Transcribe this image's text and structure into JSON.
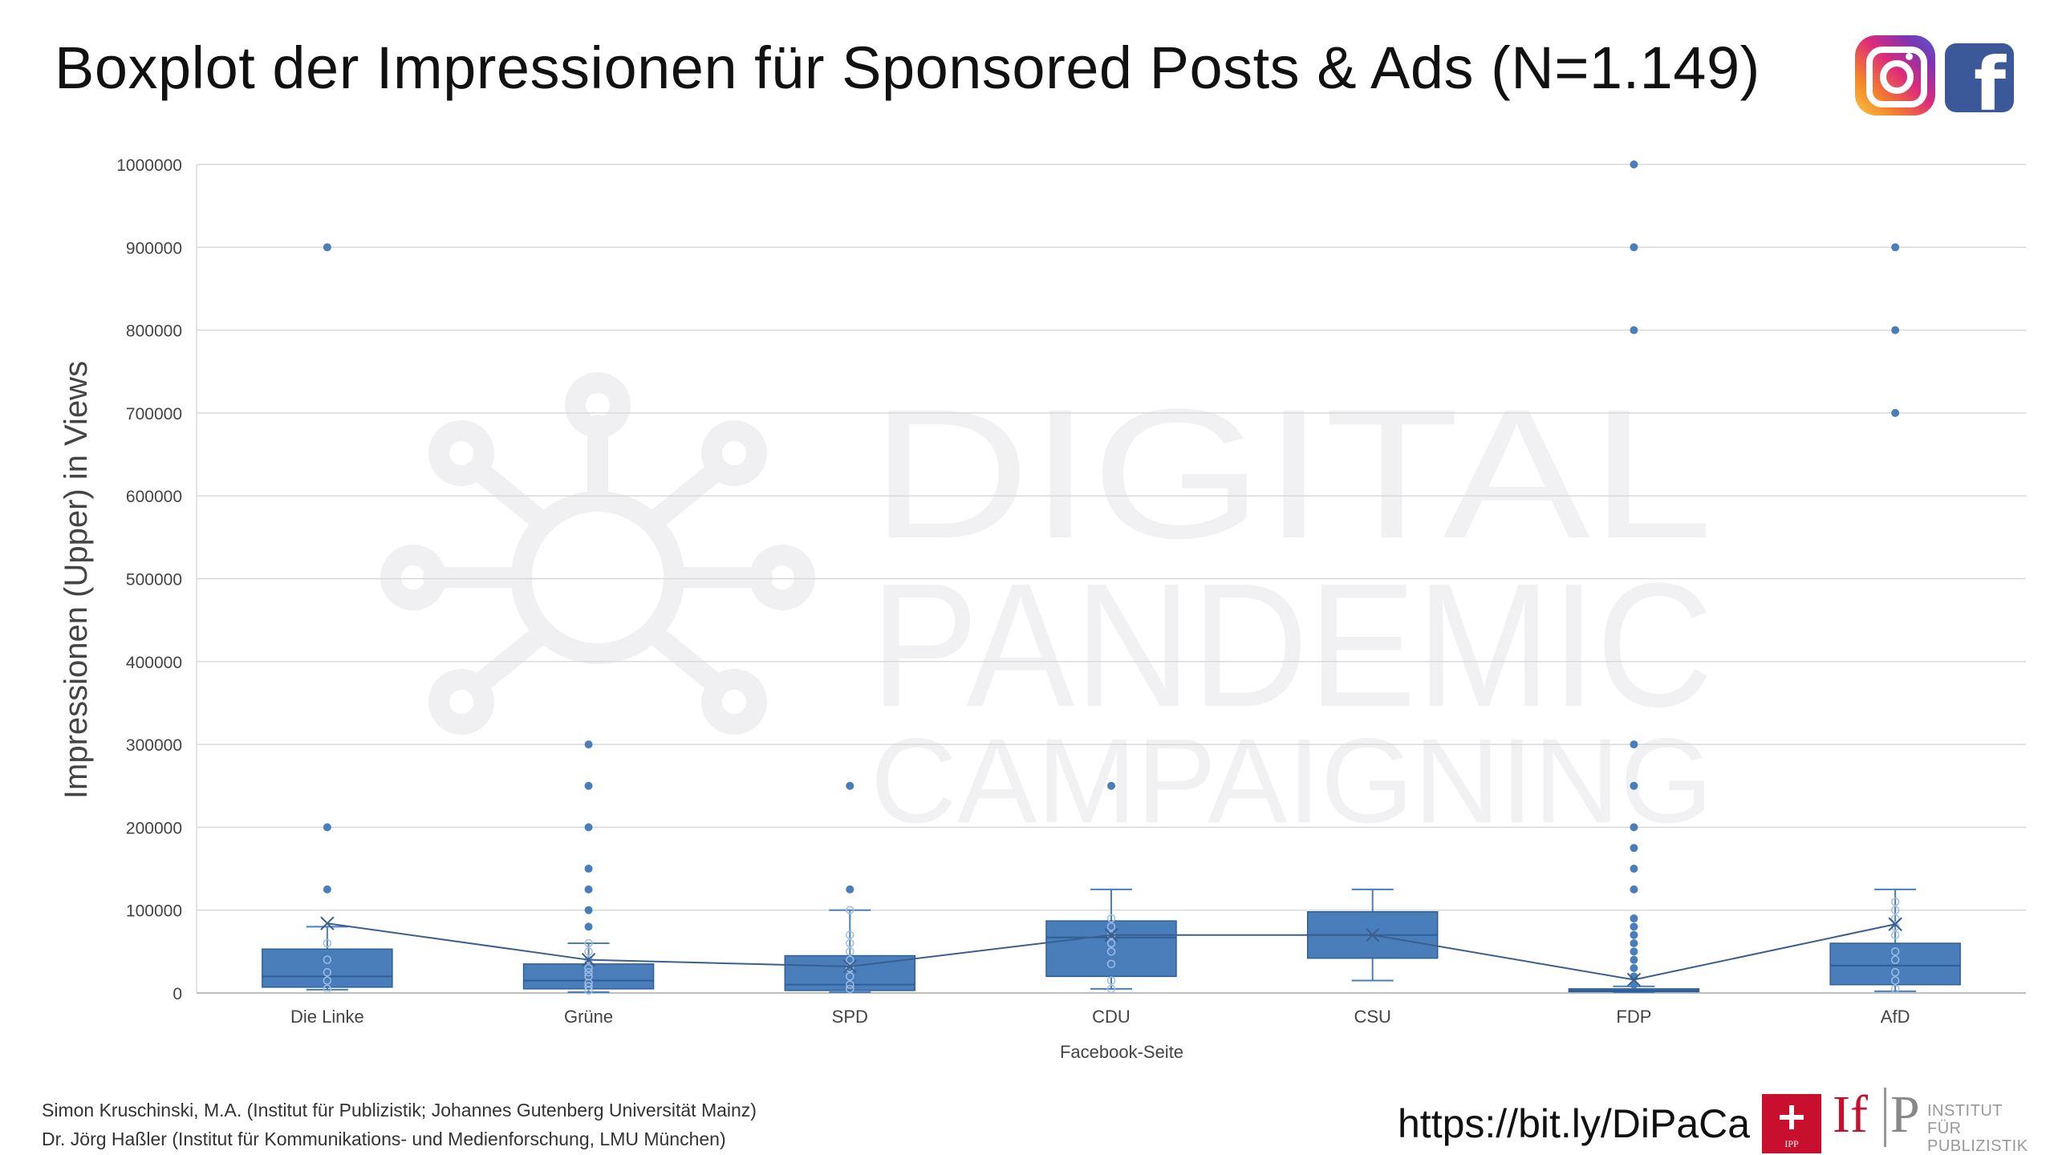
{
  "title": "Boxplot der Impressionen für Sponsored Posts & Ads (N=1.149)",
  "logos": [
    "instagram-icon",
    "facebook-icon"
  ],
  "watermark": {
    "line1": "DIGITAL",
    "line2": "PANDEMIC",
    "line3": "CAMPAIGNING"
  },
  "chart_data": {
    "type": "boxplot",
    "xlabel": "Facebook-Seite",
    "ylabel": "Impressionen (Upper) in Views",
    "ylim": [
      0,
      1000000
    ],
    "yticks": [
      0,
      100000,
      200000,
      300000,
      400000,
      500000,
      600000,
      700000,
      800000,
      900000,
      1000000
    ],
    "grid": true,
    "color": "#4a7ebb",
    "mean_line": true,
    "categories": [
      "Die Linke",
      "Grüne",
      "SPD",
      "CDU",
      "CSU",
      "FDP",
      "AfD"
    ],
    "boxes": [
      {
        "name": "Die Linke",
        "min": 4000,
        "q1": 7000,
        "median": 20000,
        "q3": 53000,
        "max": 80000,
        "mean": 84000,
        "inner_points": [
          5000,
          15000,
          25000,
          40000,
          60000
        ],
        "outliers": [
          125000,
          200000,
          900000
        ]
      },
      {
        "name": "Grüne",
        "min": 1000,
        "q1": 5000,
        "median": 15000,
        "q3": 35000,
        "max": 60000,
        "mean": 40000,
        "inner_points": [
          3000,
          8000,
          12000,
          20000,
          25000,
          30000,
          40000,
          50000,
          60000
        ],
        "outliers": [
          80000,
          100000,
          125000,
          150000,
          200000,
          250000,
          300000
        ]
      },
      {
        "name": "SPD",
        "min": 1000,
        "q1": 3000,
        "median": 10000,
        "q3": 45000,
        "max": 100000,
        "mean": 32000,
        "inner_points": [
          5000,
          10000,
          20000,
          30000,
          40000,
          50000,
          60000,
          70000,
          100000
        ],
        "outliers": [
          125000,
          250000
        ]
      },
      {
        "name": "CDU",
        "min": 5000,
        "q1": 20000,
        "median": 67000,
        "q3": 87000,
        "max": 125000,
        "mean": 70000,
        "inner_points": [
          5000,
          15000,
          35000,
          50000,
          60000,
          70000,
          80000,
          90000
        ],
        "outliers": [
          250000
        ]
      },
      {
        "name": "CSU",
        "min": 15000,
        "q1": 42000,
        "median": 70000,
        "q3": 98000,
        "max": 125000,
        "mean": 70000,
        "inner_points": [],
        "outliers": []
      },
      {
        "name": "FDP",
        "min": 1000,
        "q1": 1500,
        "median": 3000,
        "q3": 5000,
        "max": 8000,
        "mean": 16000,
        "inner_points": [],
        "outliers": [
          10000,
          20000,
          30000,
          40000,
          50000,
          60000,
          70000,
          80000,
          90000,
          125000,
          150000,
          175000,
          200000,
          250000,
          300000,
          800000,
          900000,
          1000000
        ]
      },
      {
        "name": "AfD",
        "min": 2000,
        "q1": 10000,
        "median": 33000,
        "q3": 60000,
        "max": 125000,
        "mean": 83000,
        "inner_points": [
          5000,
          15000,
          25000,
          40000,
          50000,
          70000,
          80000,
          90000,
          100000,
          110000
        ],
        "outliers": [
          700000,
          800000,
          900000
        ]
      }
    ]
  },
  "footer": {
    "credit_line1": "Simon Kruschinski, M.A. (Institut für Publizistik; Johannes Gutenberg Universität Mainz)",
    "credit_line2": "Dr. Jörg Haßler (Institut für Kommunikations- und Medienforschung, LMU München)",
    "url": "https://bit.ly/DiPaCa",
    "ipp_label": "IPP",
    "ifp_letters": "If",
    "ifp_p": "P",
    "institute_line1": "INSTITUT FÜR",
    "institute_line2": "PUBLIZISTIK"
  }
}
